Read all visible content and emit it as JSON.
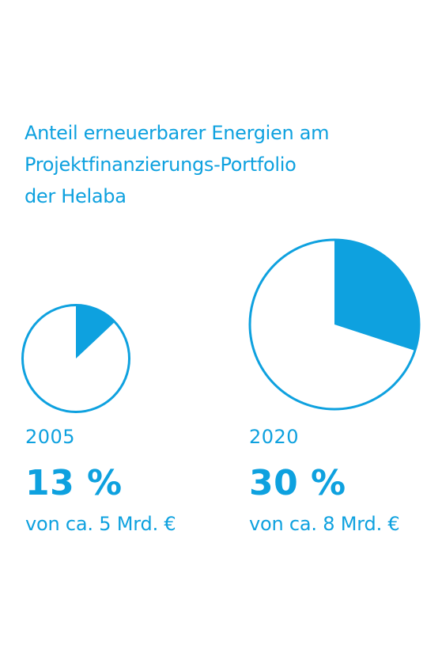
{
  "title_lines": [
    "Anteil erneuerbarer Energien am",
    "Projektfinanzierungs-Portfolio",
    "der Helaba"
  ],
  "colors": {
    "accent": "#0ea1df",
    "background": "#ffffff"
  },
  "chart_data": [
    {
      "type": "pie",
      "year": "2005",
      "share_percent": 13,
      "share_label": "13 %",
      "subtitle": "von ca. 5 Mrd. €",
      "total_bn_eur": 5
    },
    {
      "type": "pie",
      "year": "2020",
      "share_percent": 30,
      "share_label": "30 %",
      "subtitle": "von ca. 8 Mrd. €",
      "total_bn_eur": 8
    }
  ]
}
